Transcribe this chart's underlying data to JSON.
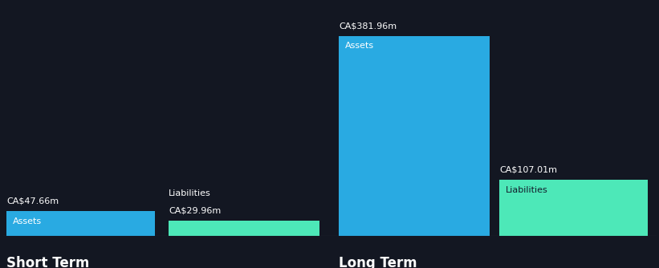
{
  "background_color": "#131722",
  "bar_color_assets": "#29aae2",
  "bar_color_liabilities": "#4de8b8",
  "text_color": "#ffffff",
  "label_color_dark": "#131c2b",
  "short_term_assets_value": 47.66,
  "short_term_liabilities_value": 29.96,
  "long_term_assets_value": 381.96,
  "long_term_liabilities_value": 107.01,
  "short_term_label": "Short Term",
  "long_term_label": "Long Term",
  "assets_label": "Assets",
  "liabilities_label": "Liabilities",
  "short_term_assets_text": "CA$47.66m",
  "short_term_liabilities_text": "CA$29.96m",
  "long_term_assets_text": "CA$381.96m",
  "long_term_liabilities_text": "CA$107.01m",
  "font_size_value": 8,
  "font_size_bar_label": 8,
  "font_size_section_label": 12
}
